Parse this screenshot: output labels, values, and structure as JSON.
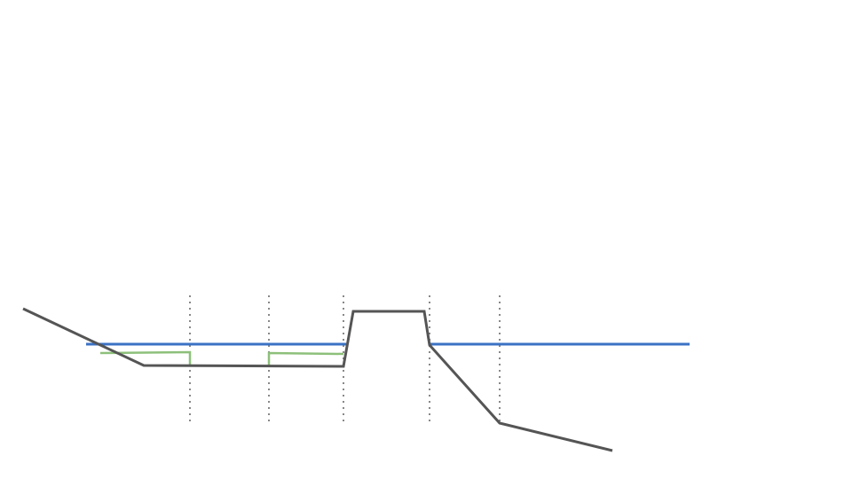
{
  "diagram": {
    "colors": {
      "profile": "#555555",
      "water_level": "#3a72c4",
      "secondary_level": "#8dc07a",
      "divider": "#888888",
      "background": "#ffffff"
    }
  }
}
